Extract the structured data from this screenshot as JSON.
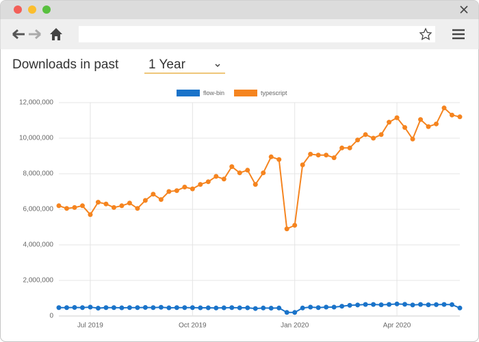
{
  "header": {
    "label": "Downloads in past",
    "period": "1 Year"
  },
  "chart_data": {
    "type": "line",
    "categories": [
      null,
      null,
      null,
      null,
      "Jul 2019",
      null,
      null,
      null,
      null,
      null,
      null,
      null,
      null,
      null,
      null,
      null,
      null,
      "Oct 2019",
      null,
      null,
      null,
      null,
      null,
      null,
      null,
      null,
      null,
      null,
      null,
      null,
      "Jan 2020",
      null,
      null,
      null,
      null,
      null,
      null,
      null,
      null,
      null,
      null,
      null,
      null,
      "Apr 2020",
      null,
      null,
      null,
      null,
      null,
      null,
      null,
      null
    ],
    "series": [
      {
        "name": "flow-bin",
        "color": "#1a73c9",
        "values": [
          470000.0,
          470000.0,
          480000.0,
          470000.0,
          500000.0,
          440000.0,
          470000.0,
          470000.0,
          460000.0,
          470000.0,
          470000.0,
          480000.0,
          470000.0,
          490000.0,
          460000.0,
          470000.0,
          470000.0,
          470000.0,
          460000.0,
          460000.0,
          450000.0,
          460000.0,
          470000.0,
          460000.0,
          460000.0,
          420000.0,
          450000.0,
          440000.0,
          450000.0,
          200000.0,
          200000.0,
          450000.0,
          500000.0,
          470000.0,
          500000.0,
          500000.0,
          550000.0,
          600000.0,
          620000.0,
          650000.0,
          650000.0,
          630000.0,
          650000.0,
          680000.0,
          660000.0,
          620000.0,
          650000.0,
          630000.0,
          640000.0,
          650000.0,
          640000.0,
          450000.0
        ]
      },
      {
        "name": "typescript",
        "color": "#f5841f",
        "values": [
          6200000.0,
          6050000.0,
          6100000.0,
          6200000.0,
          5700000.0,
          6400000.0,
          6300000.0,
          6100000.0,
          6200000.0,
          6350000.0,
          6050000.0,
          6500000.0,
          6850000.0,
          6550000.0,
          7000000.0,
          7050000.0,
          7250000.0,
          7150000.0,
          7400000.0,
          7550000.0,
          7850000.0,
          7700000.0,
          8400000.0,
          8050000.0,
          8200000.0,
          7400000.0,
          8050000.0,
          8950000.0,
          8800000.0,
          4900000.0,
          5100000.0,
          8500000.0,
          9100000.0,
          9050000.0,
          9050000.0,
          8900000.0,
          9450000.0,
          9450000.0,
          9900000.0,
          10200000.0,
          10000000.0,
          10200000.0,
          10900000.0,
          11150000.0,
          10600000.0,
          9950000.0,
          11050000.0,
          10650000.0,
          10800000.0,
          11700000.0,
          11300000.0,
          11200000.0
        ]
      }
    ],
    "ylim": [
      0,
      12000000
    ],
    "yticks": [
      0,
      {
        "value": 2000000,
        "label": "2,000,000"
      },
      {
        "value": 4000000,
        "label": "4,000,000"
      },
      {
        "value": 6000000,
        "label": "6,000,000"
      },
      {
        "value": 8000000,
        "label": "8,000,000"
      },
      {
        "value": 10000000,
        "label": "10,000,000"
      },
      {
        "value": 12000000,
        "label": "12,000,000"
      }
    ],
    "grid": true,
    "legend": "top"
  }
}
